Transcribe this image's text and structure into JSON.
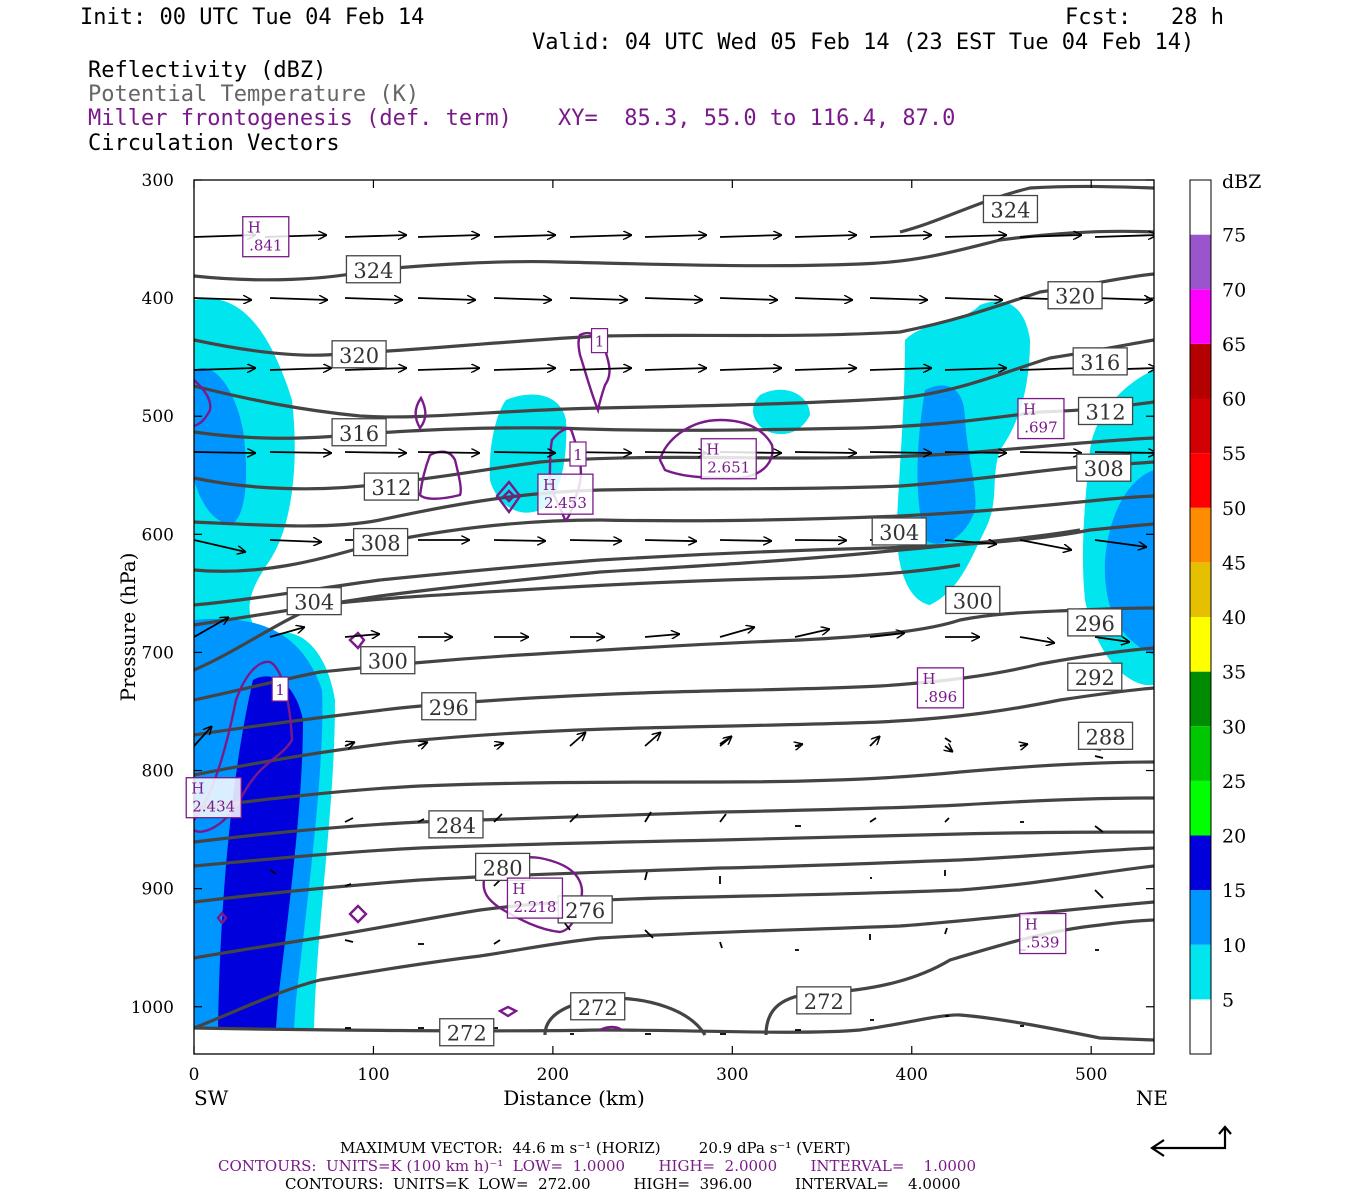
{
  "header": {
    "init": "Init: 00 UTC Tue 04 Feb 14",
    "fcst": "Fcst:   28 h",
    "valid": "Valid: 04 UTC Wed 05 Feb 14 (23 EST Tue 04 Feb 14)",
    "field1": "Reflectivity (dBZ)",
    "field2": "Potential Temperature (K)",
    "field3": "Miller frontogenesis (def. term)",
    "xy": "XY=  85.3, 55.0 to 116.4, 87.0",
    "field4": "Circulation Vectors"
  },
  "colors": {
    "theta": "#444444",
    "fronto": "#7a1a8a",
    "refl": [
      "#ffffff",
      "#00e5ee",
      "#0096ff",
      "#0000dd",
      "#00ff00",
      "#00c800",
      "#008c00",
      "#ffff00",
      "#e6c000",
      "#ff8c00",
      "#ff0000",
      "#d20000",
      "#b40000",
      "#ff00ff",
      "#9a55cc",
      "#ffffff"
    ]
  },
  "chart_data": {
    "type": "contour",
    "xlabel": "Distance (km)",
    "ylabel": "Pressure (hPa)",
    "xlim": [
      0,
      535
    ],
    "ylim": [
      1040,
      300
    ],
    "xticks": [
      0,
      100,
      200,
      300,
      400,
      500
    ],
    "yticks": [
      300,
      400,
      500,
      600,
      700,
      800,
      900,
      1000
    ],
    "left_label": "SW",
    "right_label": "NE",
    "colorbar": {
      "title": "dBZ",
      "levels": [
        5,
        10,
        15,
        20,
        25,
        30,
        35,
        40,
        45,
        50,
        55,
        60,
        65,
        70,
        75
      ]
    },
    "theta_labels": [
      {
        "text": "324",
        "x": 100,
        "p": 376
      },
      {
        "text": "324",
        "x": 455,
        "p": 325
      },
      {
        "text": "320",
        "x": 92,
        "p": 448
      },
      {
        "text": "320",
        "x": 491,
        "p": 398
      },
      {
        "text": "316",
        "x": 92,
        "p": 514
      },
      {
        "text": "316",
        "x": 505,
        "p": 454
      },
      {
        "text": "312",
        "x": 110,
        "p": 560
      },
      {
        "text": "312",
        "x": 508,
        "p": 496
      },
      {
        "text": "308",
        "x": 104,
        "p": 607
      },
      {
        "text": "308",
        "x": 507,
        "p": 544
      },
      {
        "text": "304",
        "x": 393,
        "p": 598
      },
      {
        "text": "304",
        "x": 67,
        "p": 657
      },
      {
        "text": "300",
        "x": 434,
        "p": 656
      },
      {
        "text": "300",
        "x": 108,
        "p": 707
      },
      {
        "text": "296",
        "x": 502,
        "p": 675
      },
      {
        "text": "296",
        "x": 142,
        "p": 746
      },
      {
        "text": "292",
        "x": 502,
        "p": 721
      },
      {
        "text": "288",
        "x": 508,
        "p": 771
      },
      {
        "text": "284",
        "x": 146,
        "p": 846
      },
      {
        "text": "280",
        "x": 172,
        "p": 882
      },
      {
        "text": "276",
        "x": 218,
        "p": 918
      },
      {
        "text": "272",
        "x": 225,
        "p": 1000
      },
      {
        "text": "272",
        "x": 351,
        "p": 995
      },
      {
        "text": "272",
        "x": 152,
        "p": 1022
      }
    ],
    "fronto_labels": [
      {
        "text": ".841",
        "x": 40,
        "p": 348
      },
      {
        "text": "2.651",
        "x": 298,
        "p": 536
      },
      {
        "text": "2.453",
        "x": 207,
        "p": 566
      },
      {
        "text": ".697",
        "x": 472,
        "p": 502
      },
      {
        "text": ".896",
        "x": 416,
        "p": 730
      },
      {
        "text": "2.434",
        "x": 11,
        "p": 823
      },
      {
        "text": "2.218",
        "x": 190,
        "p": 908
      },
      {
        "text": ".539",
        "x": 473,
        "p": 938
      }
    ],
    "fronto_contour_labels": [
      {
        "text": "1",
        "x": 226,
        "p": 436
      },
      {
        "text": "1",
        "x": 214,
        "p": 532
      },
      {
        "text": "1",
        "x": 48,
        "p": 731
      }
    ],
    "max_vector": {
      "horiz": "44.6",
      "vert": "20.9"
    }
  },
  "footer": {
    "maxvec": "MAXIMUM VECTOR:  44.6 m s⁻¹ (HORIZ)        20.9 dPa s⁻¹ (VERT)",
    "contours1": "CONTOURS:  UNITS=K (100 km h)⁻¹  LOW=  1.0000       HIGH=  2.0000       INTERVAL=    1.0000",
    "contours2": "CONTOURS:  UNITS=K  LOW=  272.00         HIGH=  396.00         INTERVAL=    4.0000"
  }
}
